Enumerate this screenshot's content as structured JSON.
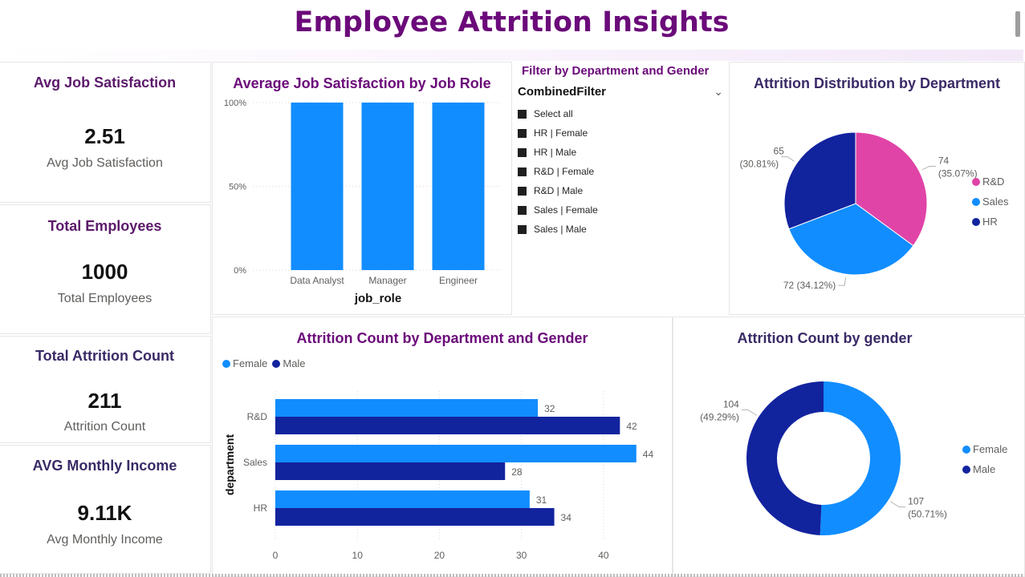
{
  "page": {
    "title": "Employee Attrition Insights"
  },
  "kpis": {
    "job_satisfaction": {
      "title": "Avg Job Satisfaction",
      "value": "2.51",
      "label": "Avg Job Satisfaction"
    },
    "employees": {
      "title": "Total Employees",
      "value": "1000",
      "label": "Total Employees"
    },
    "attrition": {
      "title": "Total Attrition Count",
      "value": "211",
      "label": "Attrition Count"
    },
    "income": {
      "title": "AVG Monthly Income",
      "value": "9.11K",
      "label": "Avg Monthly Income"
    }
  },
  "slicer": {
    "title": "Filter by Department and Gender",
    "field": "CombinedFilter",
    "items": [
      "Select all",
      "HR | Female",
      "HR | Male",
      "R&D | Female",
      "R&D | Male",
      "Sales | Female",
      "Sales | Male"
    ]
  },
  "colors": {
    "title_purple": "#6b0a7a",
    "blue": "#118dff",
    "navy": "#12239e",
    "pink": "#e044a7"
  },
  "chart_data": [
    {
      "type": "bar",
      "title": "Average Job Satisfaction by Job Role",
      "categories": [
        "Data Analyst",
        "Manager",
        "Engineer"
      ],
      "values": [
        100,
        100,
        100
      ],
      "xlabel": "job_role",
      "ylabel": "",
      "ylim": [
        0,
        100
      ],
      "yticks": [
        "0%",
        "50%",
        "100%"
      ],
      "color": "#118dff",
      "grid": true
    },
    {
      "type": "pie",
      "title": "Attrition Distribution by Department",
      "labels": [
        "R&D",
        "Sales",
        "HR"
      ],
      "values": [
        74,
        72,
        65
      ],
      "value_labels": [
        "74",
        "72 (34.12%)",
        "65"
      ],
      "percent_labels": [
        "(35.07%)",
        "",
        "(30.81%)"
      ],
      "colors": [
        "#e044a7",
        "#118dff",
        "#12239e"
      ],
      "legend": "right"
    },
    {
      "type": "bar",
      "orientation": "horizontal",
      "title": "Attrition Count by Department and Gender",
      "categories": [
        "R&D",
        "Sales",
        "HR"
      ],
      "series": [
        {
          "name": "Female",
          "values": [
            32,
            44,
            31
          ],
          "color": "#118dff"
        },
        {
          "name": "Male",
          "values": [
            42,
            28,
            34
          ],
          "color": "#12239e"
        }
      ],
      "ylabel": "department",
      "xlim": [
        0,
        45
      ],
      "xticks": [
        "0",
        "10",
        "20",
        "30",
        "40"
      ],
      "legend": "top-left",
      "grid": true
    },
    {
      "type": "pie",
      "donut": true,
      "title": "Attrition Count by gender",
      "labels": [
        "Female",
        "Male"
      ],
      "values": [
        107,
        104
      ],
      "value_labels": [
        "107",
        "104"
      ],
      "percent_labels": [
        "(50.71%)",
        "(49.29%)"
      ],
      "colors": [
        "#118dff",
        "#12239e"
      ],
      "legend": "right"
    }
  ]
}
